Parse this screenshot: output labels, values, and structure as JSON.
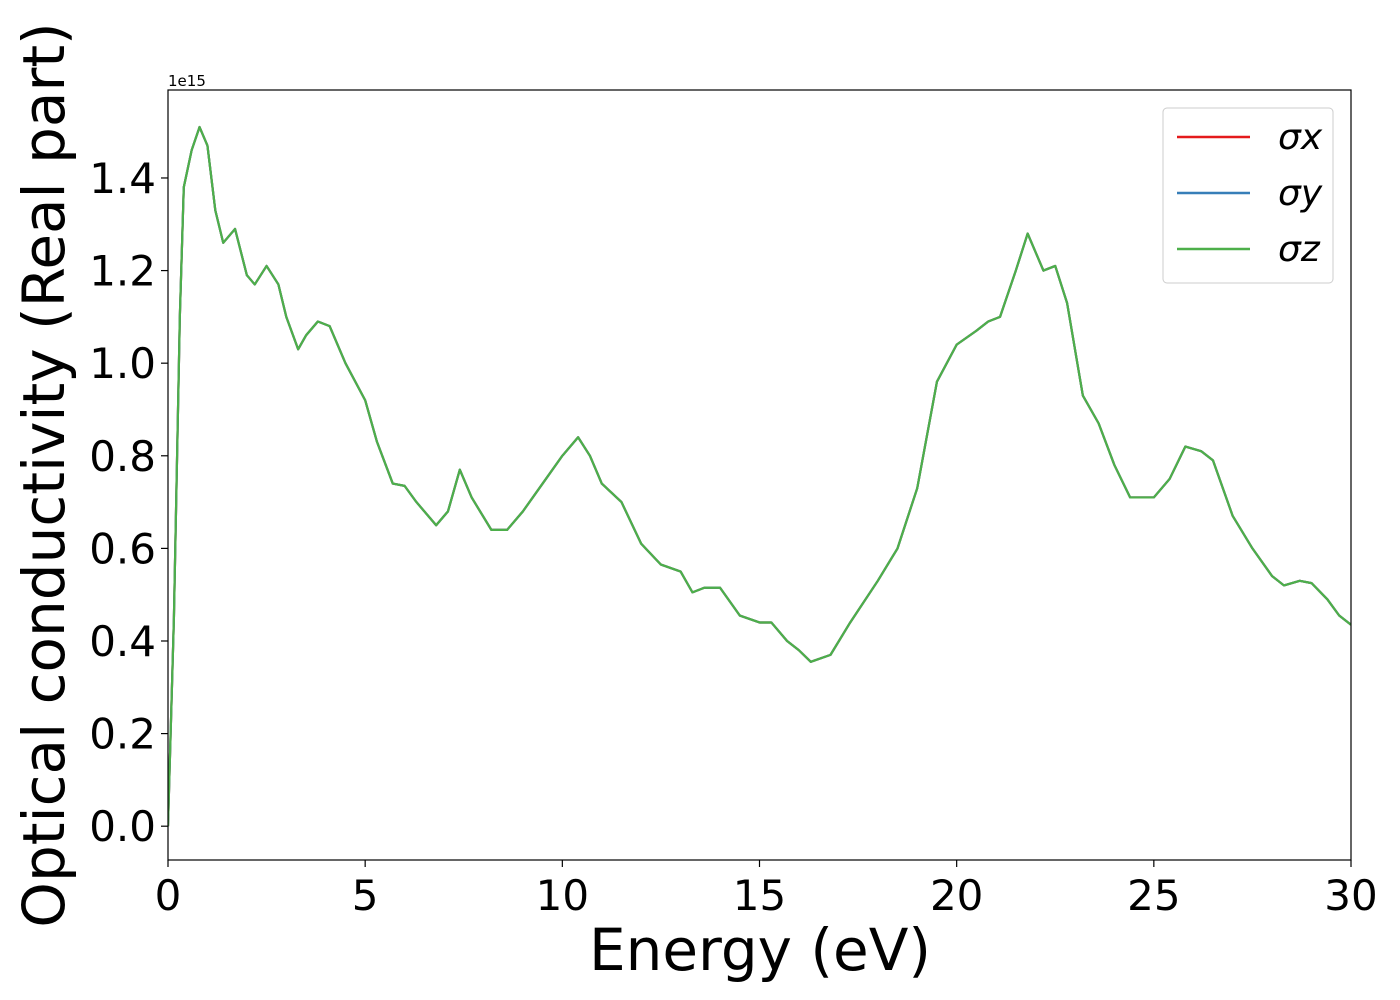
{
  "chart_data": {
    "type": "line",
    "xlabel": "Energy (eV)",
    "ylabel": "Optical conductivity (Real part)",
    "y_offset_label": "1e15",
    "x": [
      0,
      0.15,
      0.3,
      0.4,
      0.6,
      0.8,
      1.0,
      1.2,
      1.4,
      1.7,
      2.0,
      2.2,
      2.5,
      2.8,
      3.0,
      3.3,
      3.5,
      3.8,
      4.1,
      4.5,
      5.0,
      5.3,
      5.7,
      6.0,
      6.3,
      6.8,
      7.1,
      7.4,
      7.7,
      8.2,
      8.6,
      9.0,
      9.5,
      10.0,
      10.4,
      10.7,
      11.0,
      11.5,
      12.0,
      12.5,
      13.0,
      13.3,
      13.6,
      14.0,
      14.5,
      15.0,
      15.3,
      15.7,
      16.0,
      16.3,
      16.8,
      17.3,
      18.0,
      18.5,
      19.0,
      19.5,
      20.0,
      20.5,
      20.8,
      21.1,
      21.5,
      21.8,
      22.2,
      22.5,
      22.8,
      23.2,
      23.6,
      24.0,
      24.4,
      25.0,
      25.4,
      25.8,
      26.2,
      26.5,
      27.0,
      27.5,
      28.0,
      28.3,
      28.7,
      29.0,
      29.4,
      29.7,
      30.0
    ],
    "series": [
      {
        "name": "σx",
        "color": "#e41a1c",
        "values": [
          0,
          0.45,
          1.1,
          1.38,
          1.46,
          1.51,
          1.47,
          1.33,
          1.26,
          1.29,
          1.19,
          1.17,
          1.21,
          1.17,
          1.1,
          1.03,
          1.06,
          1.09,
          1.08,
          1.0,
          0.92,
          0.83,
          0.74,
          0.735,
          0.7,
          0.65,
          0.68,
          0.77,
          0.71,
          0.64,
          0.64,
          0.68,
          0.74,
          0.8,
          0.84,
          0.8,
          0.74,
          0.7,
          0.61,
          0.565,
          0.55,
          0.505,
          0.515,
          0.515,
          0.455,
          0.44,
          0.44,
          0.4,
          0.38,
          0.355,
          0.37,
          0.44,
          0.53,
          0.6,
          0.73,
          0.96,
          1.04,
          1.07,
          1.09,
          1.1,
          1.2,
          1.28,
          1.2,
          1.21,
          1.13,
          0.93,
          0.87,
          0.78,
          0.71,
          0.71,
          0.75,
          0.82,
          0.81,
          0.79,
          0.67,
          0.6,
          0.54,
          0.52,
          0.53,
          0.525,
          0.49,
          0.455,
          0.435
        ]
      },
      {
        "name": "σy",
        "color": "#377eb8",
        "values": [
          0,
          0.45,
          1.1,
          1.38,
          1.46,
          1.51,
          1.47,
          1.33,
          1.26,
          1.29,
          1.19,
          1.17,
          1.21,
          1.17,
          1.1,
          1.03,
          1.06,
          1.09,
          1.08,
          1.0,
          0.92,
          0.83,
          0.74,
          0.735,
          0.7,
          0.65,
          0.68,
          0.77,
          0.71,
          0.64,
          0.64,
          0.68,
          0.74,
          0.8,
          0.84,
          0.8,
          0.74,
          0.7,
          0.61,
          0.565,
          0.55,
          0.505,
          0.515,
          0.515,
          0.455,
          0.44,
          0.44,
          0.4,
          0.38,
          0.355,
          0.37,
          0.44,
          0.53,
          0.6,
          0.73,
          0.96,
          1.04,
          1.07,
          1.09,
          1.1,
          1.2,
          1.28,
          1.2,
          1.21,
          1.13,
          0.93,
          0.87,
          0.78,
          0.71,
          0.71,
          0.75,
          0.82,
          0.81,
          0.79,
          0.67,
          0.6,
          0.54,
          0.52,
          0.53,
          0.525,
          0.49,
          0.455,
          0.435
        ]
      },
      {
        "name": "σz",
        "color": "#4daf4a",
        "values": [
          0,
          0.45,
          1.1,
          1.38,
          1.46,
          1.51,
          1.47,
          1.33,
          1.26,
          1.29,
          1.19,
          1.17,
          1.21,
          1.17,
          1.1,
          1.03,
          1.06,
          1.09,
          1.08,
          1.0,
          0.92,
          0.83,
          0.74,
          0.735,
          0.7,
          0.65,
          0.68,
          0.77,
          0.71,
          0.64,
          0.64,
          0.68,
          0.74,
          0.8,
          0.84,
          0.8,
          0.74,
          0.7,
          0.61,
          0.565,
          0.55,
          0.505,
          0.515,
          0.515,
          0.455,
          0.44,
          0.44,
          0.4,
          0.38,
          0.355,
          0.37,
          0.44,
          0.53,
          0.6,
          0.73,
          0.96,
          1.04,
          1.07,
          1.09,
          1.1,
          1.2,
          1.28,
          1.2,
          1.21,
          1.13,
          0.93,
          0.87,
          0.78,
          0.71,
          0.71,
          0.75,
          0.82,
          0.81,
          0.79,
          0.67,
          0.6,
          0.54,
          0.52,
          0.53,
          0.525,
          0.49,
          0.455,
          0.435
        ]
      }
    ],
    "xlim": [
      0,
      30
    ],
    "xticks": [
      0,
      5,
      10,
      15,
      20,
      25,
      30
    ],
    "ylim": [
      -0.073,
      1.59
    ],
    "yticks": [
      {
        "value": 0,
        "label": "0.0"
      },
      0.2,
      0.4,
      0.6,
      0.8,
      {
        "value": 1,
        "label": "1.0"
      },
      1.2,
      1.4
    ],
    "grid": false,
    "legend": "upper right"
  }
}
